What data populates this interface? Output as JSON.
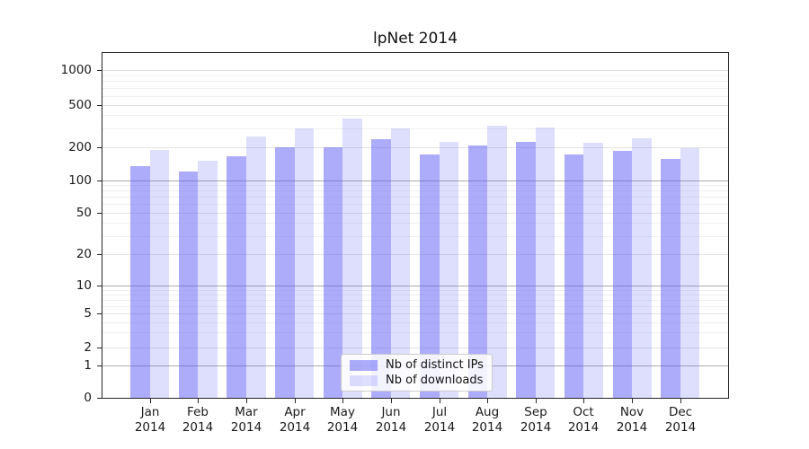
{
  "title": "lpNet 2014",
  "chart_data": {
    "type": "bar",
    "title": "lpNet 2014",
    "categories": [
      "Jan 2014",
      "Feb 2014",
      "Mar 2014",
      "Apr 2014",
      "May 2014",
      "Jun 2014",
      "Jul 2014",
      "Aug 2014",
      "Sep 2014",
      "Oct 2014",
      "Nov 2014",
      "Dec 2014"
    ],
    "x_months": [
      "Jan",
      "Feb",
      "Mar",
      "Apr",
      "May",
      "Jun",
      "Jul",
      "Aug",
      "Sep",
      "Oct",
      "Nov",
      "Dec"
    ],
    "x_year": "2014",
    "series": [
      {
        "name": "Nb of distinct IPs",
        "color": "rgba(90,90,245,0.5)",
        "values": [
          135,
          121,
          166,
          200,
          199,
          236,
          172,
          206,
          226,
          173,
          185,
          157
        ]
      },
      {
        "name": "Nb of downloads",
        "color": "rgba(90,90,245,0.2)",
        "values": [
          188,
          150,
          252,
          299,
          372,
          300,
          223,
          318,
          305,
          221,
          241,
          198
        ]
      }
    ],
    "y_axis": {
      "scale": "logarithmic with zero baseline",
      "ticks": [
        1000,
        500,
        200,
        100,
        50,
        20,
        10,
        5,
        2,
        1,
        0
      ],
      "minor_gridlines": true,
      "ylim_top_approx": 1400
    },
    "xlabel": "",
    "ylabel": "",
    "legend": {
      "position": "lower center",
      "entries": [
        "Nb of distinct IPs",
        "Nb of downloads"
      ]
    },
    "grid": true,
    "colors": {
      "bar_primary_rendered": "#aaaaf8",
      "bar_secondary_rendered": "#dedefb",
      "grid_major": "#ababab",
      "grid_minor": "#f0f0f0",
      "spine": "#262626",
      "text": "#1a1a1a"
    }
  }
}
